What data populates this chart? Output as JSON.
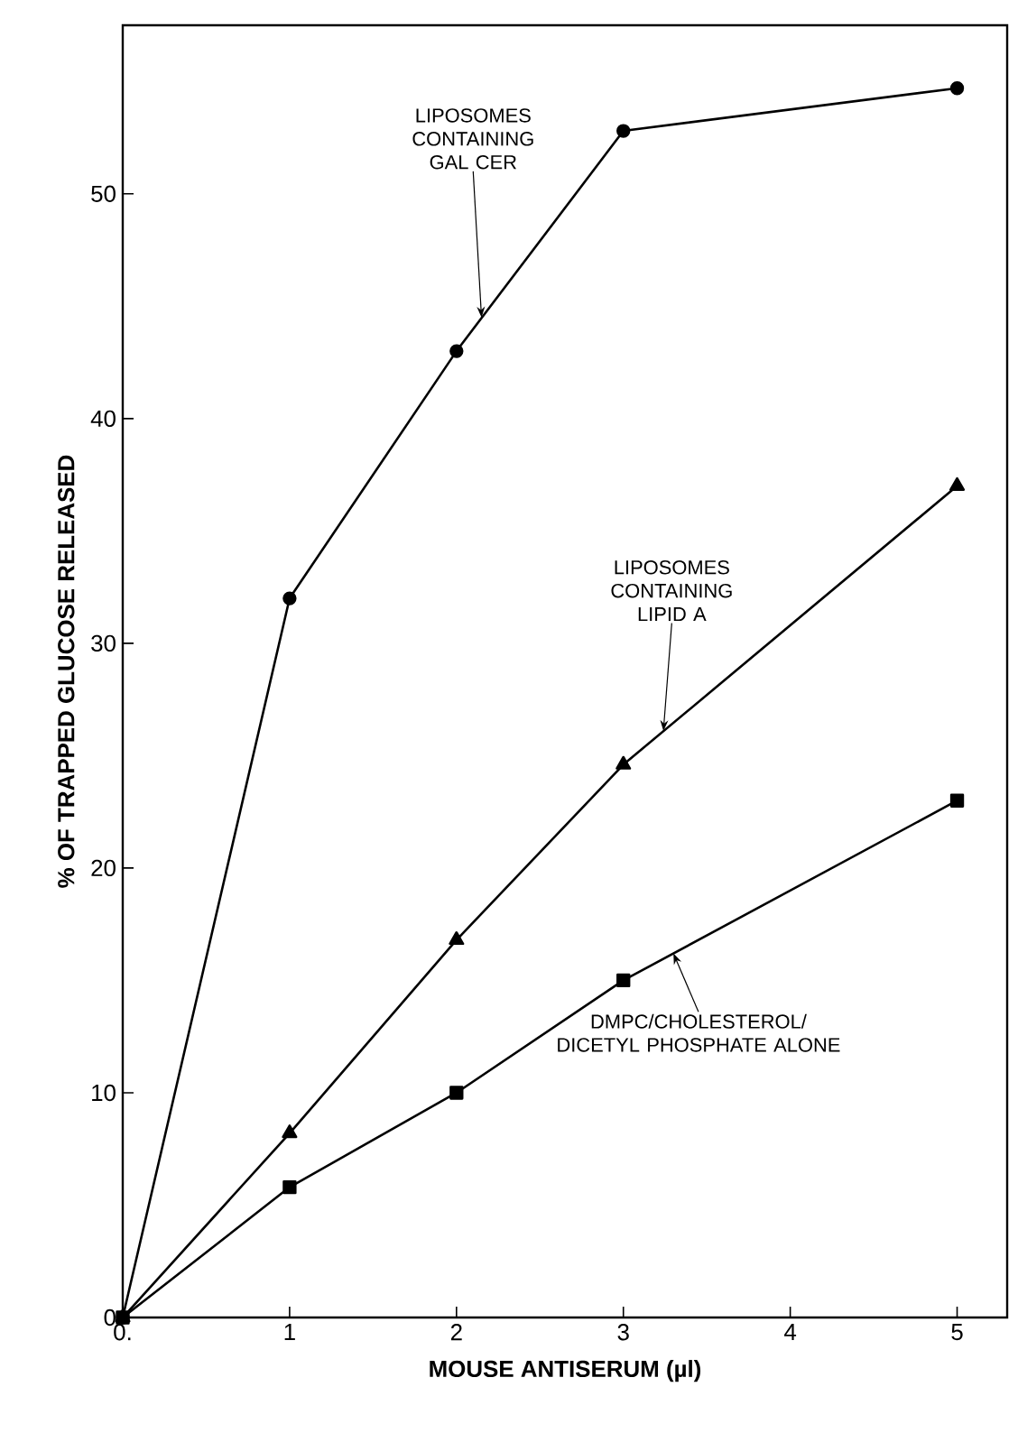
{
  "chart_data": {
    "type": "line",
    "xlabel": "MOUSE ANTISERUM (µl)",
    "ylabel": "% OF TRAPPED GLUCOSE RELEASED",
    "xlim": [
      0,
      5.3
    ],
    "ylim": [
      0,
      57.5
    ],
    "xticks": [
      {
        "value": 0,
        "label": "0."
      },
      1,
      2,
      3,
      4,
      5
    ],
    "yticks": [
      0,
      10,
      20,
      30,
      40,
      50
    ],
    "grid": false,
    "line_style": "solid",
    "series": [
      {
        "x": [
          0,
          1,
          2,
          3,
          5
        ],
        "values": [
          0,
          32,
          43,
          52.8,
          54.7
        ],
        "color": "#000000",
        "marker": "circle"
      },
      {
        "x": [
          0,
          1,
          2,
          3,
          5
        ],
        "values": [
          0,
          8.2,
          16.8,
          24.6,
          37
        ],
        "color": "#000000",
        "marker": "triangle"
      },
      {
        "x": [
          0,
          1,
          2,
          3,
          5
        ],
        "values": [
          0,
          5.8,
          10,
          15,
          23
        ],
        "color": "#000000",
        "marker": "square"
      }
    ],
    "annotations": [
      {
        "text": "LIPOSOMES CONTAINING GAL CER",
        "x": 2.15,
        "y": 44.5
      },
      {
        "text": "LIPOSOMES CONTAINING LIPID A",
        "x": 3.24,
        "y": 26.1
      },
      {
        "text": "DMPC/CHOLESTEROL/ DICETYL PHOSPHATE ALONE",
        "x": 3.3,
        "y": 16.2
      }
    ]
  }
}
